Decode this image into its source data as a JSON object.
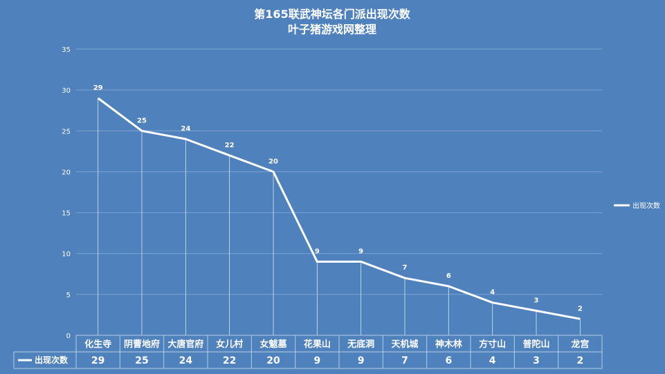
{
  "chart_data": {
    "type": "line",
    "title": "第165联武神坛各门派出现次数",
    "subtitle": "叶子猪游戏网整理",
    "categories": [
      "化生寺",
      "阴曹地府",
      "大唐官府",
      "女儿村",
      "女魃墓",
      "花果山",
      "无底洞",
      "天机城",
      "神木林",
      "方寸山",
      "普陀山",
      "龙宫"
    ],
    "series": [
      {
        "name": "出现次数",
        "values": [
          29,
          25,
          24,
          22,
          20,
          9,
          9,
          7,
          6,
          4,
          3,
          2
        ]
      }
    ],
    "ylim": [
      0,
      35
    ],
    "yticks": [
      0,
      5,
      10,
      15,
      20,
      25,
      30,
      35
    ],
    "xlabel": "",
    "ylabel": "",
    "grid": true,
    "legend": "right",
    "data_table": true,
    "colors": {
      "background": "#4f81bd",
      "line": "#ffffff",
      "grid": "#7ea3d2"
    }
  }
}
